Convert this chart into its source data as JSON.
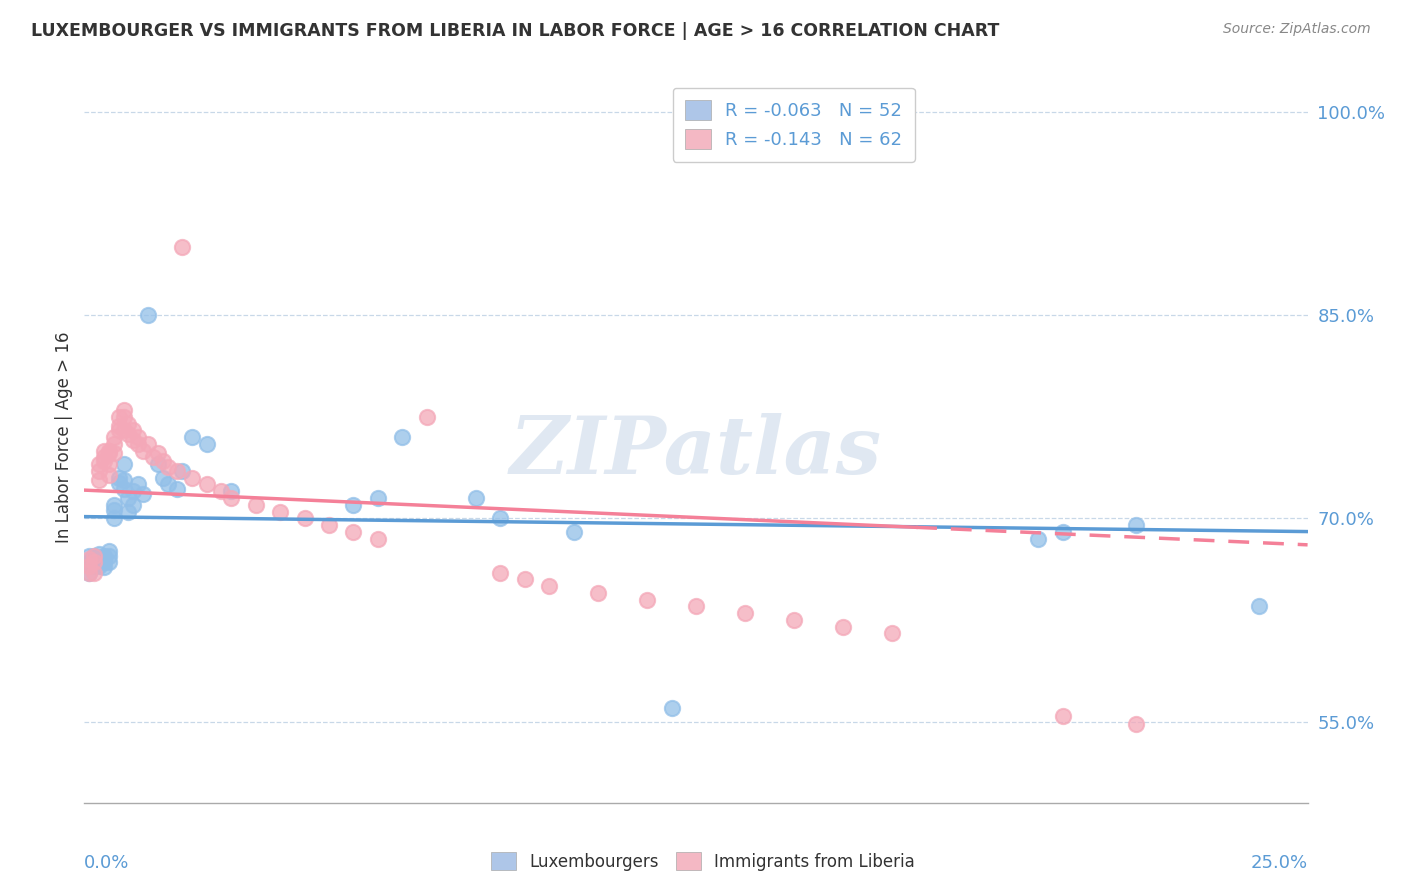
{
  "title": "LUXEMBOURGER VS IMMIGRANTS FROM LIBERIA IN LABOR FORCE | AGE > 16 CORRELATION CHART",
  "source": "Source: ZipAtlas.com",
  "ylabel": "In Labor Force | Age > 16",
  "series1_color": "#92bfe8",
  "series2_color": "#f4a8b8",
  "series1_line_color": "#5b9bd5",
  "series2_line_color": "#f48098",
  "series1_label": "Luxembourgers",
  "series2_label": "Immigrants from Liberia",
  "watermark": "ZIPatlas",
  "legend_r1": "R = -0.063",
  "legend_n1": "N = 52",
  "legend_r2": "R = -0.143",
  "legend_n2": "N = 62",
  "legend_color1": "#aec6e8",
  "legend_color2": "#f4b8c4",
  "xlim": [
    0.0,
    0.25
  ],
  "ylim": [
    0.49,
    1.03
  ],
  "ytick_vals": [
    0.55,
    0.7,
    0.85,
    1.0
  ],
  "ytick_labels": [
    "55.0%",
    "70.0%",
    "85.0%",
    "100.0%"
  ],
  "scatter1_x": [
    0.001,
    0.001,
    0.001,
    0.002,
    0.002,
    0.002,
    0.002,
    0.003,
    0.003,
    0.003,
    0.003,
    0.004,
    0.004,
    0.004,
    0.004,
    0.005,
    0.005,
    0.005,
    0.006,
    0.006,
    0.006,
    0.007,
    0.007,
    0.008,
    0.008,
    0.008,
    0.009,
    0.009,
    0.01,
    0.01,
    0.011,
    0.012,
    0.013,
    0.015,
    0.016,
    0.017,
    0.019,
    0.02,
    0.022,
    0.025,
    0.03,
    0.055,
    0.06,
    0.065,
    0.08,
    0.085,
    0.1,
    0.12,
    0.195,
    0.2,
    0.215,
    0.24
  ],
  "scatter1_y": [
    0.668,
    0.672,
    0.66,
    0.668,
    0.665,
    0.67,
    0.672,
    0.674,
    0.67,
    0.668,
    0.665,
    0.672,
    0.668,
    0.664,
    0.67,
    0.676,
    0.672,
    0.668,
    0.71,
    0.706,
    0.7,
    0.73,
    0.726,
    0.74,
    0.728,
    0.722,
    0.715,
    0.705,
    0.72,
    0.71,
    0.725,
    0.718,
    0.85,
    0.74,
    0.73,
    0.725,
    0.722,
    0.735,
    0.76,
    0.755,
    0.72,
    0.71,
    0.715,
    0.76,
    0.715,
    0.7,
    0.69,
    0.56,
    0.685,
    0.69,
    0.695,
    0.635
  ],
  "scatter2_x": [
    0.001,
    0.001,
    0.001,
    0.002,
    0.002,
    0.002,
    0.003,
    0.003,
    0.003,
    0.004,
    0.004,
    0.004,
    0.005,
    0.005,
    0.005,
    0.005,
    0.006,
    0.006,
    0.006,
    0.007,
    0.007,
    0.007,
    0.008,
    0.008,
    0.008,
    0.009,
    0.009,
    0.01,
    0.01,
    0.011,
    0.011,
    0.012,
    0.013,
    0.014,
    0.015,
    0.016,
    0.017,
    0.019,
    0.02,
    0.022,
    0.025,
    0.028,
    0.03,
    0.035,
    0.04,
    0.045,
    0.05,
    0.055,
    0.06,
    0.07,
    0.085,
    0.09,
    0.095,
    0.105,
    0.115,
    0.125,
    0.135,
    0.145,
    0.155,
    0.165,
    0.2,
    0.215
  ],
  "scatter2_y": [
    0.67,
    0.66,
    0.665,
    0.668,
    0.672,
    0.66,
    0.74,
    0.735,
    0.728,
    0.745,
    0.75,
    0.742,
    0.75,
    0.748,
    0.74,
    0.732,
    0.755,
    0.76,
    0.748,
    0.768,
    0.775,
    0.765,
    0.78,
    0.775,
    0.765,
    0.77,
    0.762,
    0.765,
    0.758,
    0.76,
    0.755,
    0.75,
    0.755,
    0.745,
    0.748,
    0.742,
    0.738,
    0.735,
    0.9,
    0.73,
    0.725,
    0.72,
    0.715,
    0.71,
    0.705,
    0.7,
    0.695,
    0.69,
    0.685,
    0.775,
    0.66,
    0.655,
    0.65,
    0.645,
    0.64,
    0.635,
    0.63,
    0.625,
    0.62,
    0.615,
    0.554,
    0.548
  ]
}
